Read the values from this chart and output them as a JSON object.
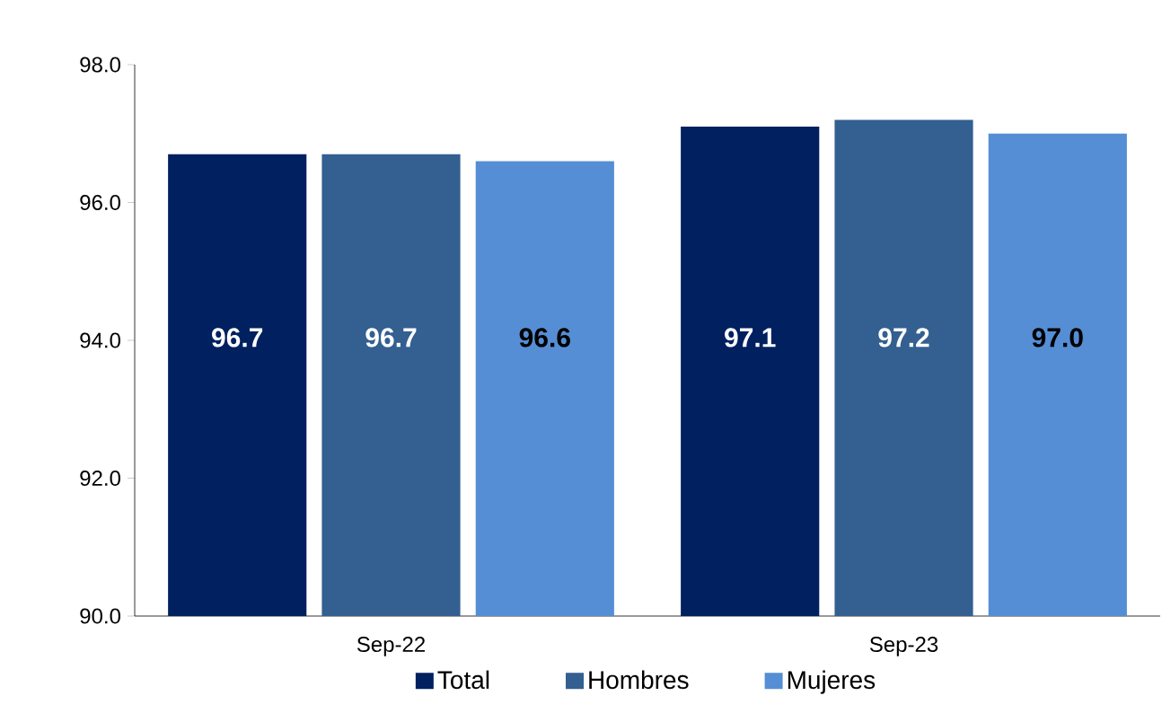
{
  "chart_data": {
    "type": "bar",
    "categories": [
      "Sep-22",
      "Sep-23"
    ],
    "series": [
      {
        "name": "Total",
        "color": "#002060",
        "values": [
          96.7,
          97.1
        ],
        "value_labels": [
          "96.7",
          "97.1"
        ]
      },
      {
        "name": "Hombres",
        "color": "#335f91",
        "values": [
          96.7,
          97.2
        ],
        "value_labels": [
          "96.7",
          "97.2"
        ]
      },
      {
        "name": "Mujeres",
        "color": "#558ed5",
        "values": [
          96.6,
          97.0
        ],
        "value_labels": [
          "96.6",
          "97.0"
        ]
      }
    ],
    "ylim": [
      90,
      98
    ],
    "yticks": [
      {
        "value": 90,
        "label": "90.0"
      },
      {
        "value": 92,
        "label": "92.0"
      },
      {
        "value": 94,
        "label": "94.0"
      },
      {
        "value": 96,
        "label": "96.0"
      },
      {
        "value": 98,
        "label": "98.0"
      }
    ],
    "grid": false,
    "legend": "bottom"
  }
}
